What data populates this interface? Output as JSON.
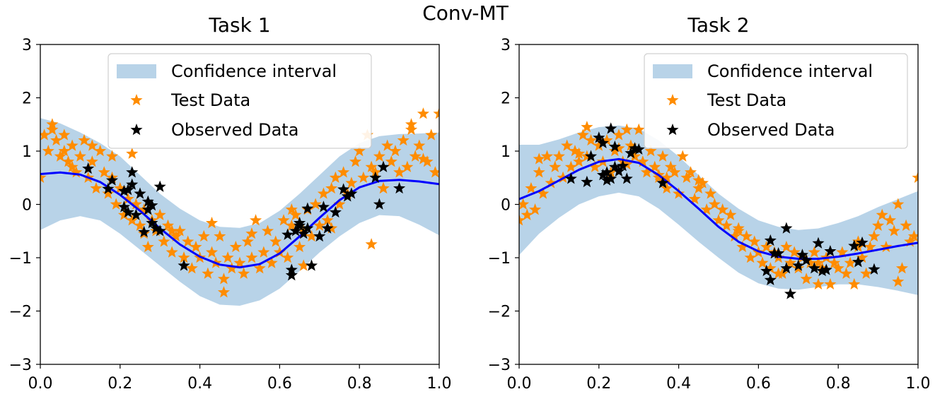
{
  "suptitle": "Conv-MT",
  "colors": {
    "band": "#b8d3e8",
    "mean": "#0000ff",
    "test": "#ff8c00",
    "observed": "#000000"
  },
  "legend": {
    "band_label": "Confidence interval",
    "test_label": "Test Data",
    "observed_label": "Observed Data"
  },
  "chart_data": [
    {
      "type": "scatter",
      "title": "Task 1",
      "xlim": [
        0.0,
        1.0
      ],
      "ylim": [
        -3,
        3
      ],
      "xticks": [
        "0.0",
        "0.2",
        "0.4",
        "0.6",
        "0.8",
        "1.0"
      ],
      "yticks": [
        "−3",
        "−2",
        "−1",
        "0",
        "1",
        "2",
        "3"
      ],
      "mean": {
        "x": [
          0.0,
          0.05,
          0.1,
          0.15,
          0.2,
          0.25,
          0.3,
          0.35,
          0.4,
          0.45,
          0.5,
          0.55,
          0.6,
          0.65,
          0.7,
          0.75,
          0.8,
          0.85,
          0.9,
          0.95,
          1.0
        ],
        "y": [
          0.57,
          0.6,
          0.56,
          0.42,
          0.18,
          -0.12,
          -0.45,
          -0.75,
          -0.98,
          -1.13,
          -1.18,
          -1.12,
          -0.92,
          -0.6,
          -0.25,
          0.08,
          0.32,
          0.44,
          0.46,
          0.43,
          0.38
        ]
      },
      "band": {
        "x": [
          0.0,
          0.05,
          0.1,
          0.15,
          0.2,
          0.25,
          0.3,
          0.35,
          0.4,
          0.45,
          0.5,
          0.55,
          0.6,
          0.65,
          0.7,
          0.75,
          0.8,
          0.85,
          0.9,
          0.95,
          1.0
        ],
        "upper": [
          1.62,
          1.52,
          1.35,
          1.15,
          0.9,
          0.55,
          0.2,
          -0.08,
          -0.3,
          -0.42,
          -0.44,
          -0.35,
          -0.12,
          0.2,
          0.55,
          0.9,
          1.15,
          1.28,
          1.32,
          1.33,
          1.35
        ],
        "lower": [
          -0.48,
          -0.3,
          -0.22,
          -0.3,
          -0.55,
          -0.85,
          -1.15,
          -1.45,
          -1.72,
          -1.88,
          -1.9,
          -1.8,
          -1.58,
          -1.25,
          -0.9,
          -0.6,
          -0.35,
          -0.2,
          -0.22,
          -0.38,
          -0.58
        ]
      },
      "test": {
        "x": [
          0.0,
          0.01,
          0.02,
          0.03,
          0.04,
          0.05,
          0.06,
          0.07,
          0.08,
          0.09,
          0.1,
          0.11,
          0.12,
          0.13,
          0.14,
          0.15,
          0.16,
          0.17,
          0.18,
          0.19,
          0.2,
          0.21,
          0.22,
          0.23,
          0.24,
          0.25,
          0.26,
          0.27,
          0.28,
          0.29,
          0.3,
          0.31,
          0.32,
          0.33,
          0.34,
          0.35,
          0.36,
          0.37,
          0.38,
          0.39,
          0.4,
          0.41,
          0.42,
          0.43,
          0.44,
          0.45,
          0.46,
          0.47,
          0.48,
          0.49,
          0.5,
          0.51,
          0.52,
          0.53,
          0.54,
          0.55,
          0.56,
          0.57,
          0.58,
          0.59,
          0.6,
          0.61,
          0.62,
          0.63,
          0.64,
          0.65,
          0.66,
          0.67,
          0.68,
          0.69,
          0.7,
          0.71,
          0.72,
          0.73,
          0.74,
          0.75,
          0.76,
          0.77,
          0.78,
          0.79,
          0.8,
          0.81,
          0.82,
          0.83,
          0.84,
          0.85,
          0.86,
          0.87,
          0.88,
          0.89,
          0.9,
          0.91,
          0.92,
          0.93,
          0.94,
          0.95,
          0.96,
          0.97,
          0.98,
          0.99,
          1.0,
          0.03,
          0.08,
          0.13,
          0.18,
          0.23,
          0.33,
          0.43,
          0.53,
          0.63,
          0.73,
          0.83,
          0.93,
          0.06,
          0.26,
          0.46,
          0.66,
          0.86,
          0.96
        ],
        "y": [
          0.5,
          1.3,
          1.0,
          1.5,
          1.2,
          0.9,
          1.3,
          0.8,
          1.1,
          0.6,
          0.9,
          1.2,
          0.5,
          0.8,
          0.3,
          1.0,
          0.6,
          0.2,
          0.5,
          0.0,
          0.3,
          -0.2,
          0.1,
          -0.3,
          0.0,
          -0.4,
          -0.1,
          -0.8,
          -0.3,
          -0.5,
          -0.2,
          -0.7,
          -0.4,
          -0.9,
          -0.6,
          -0.5,
          -1.0,
          -0.7,
          -1.2,
          -0.8,
          -1.0,
          -0.6,
          -1.3,
          -0.9,
          -1.1,
          -0.6,
          -1.4,
          -1.0,
          -1.2,
          -0.8,
          -1.1,
          -1.3,
          -0.7,
          -1.0,
          -0.3,
          -1.2,
          -0.9,
          -0.5,
          -1.1,
          -0.7,
          -0.9,
          -0.3,
          -1.0,
          -0.4,
          -0.2,
          -0.8,
          -0.5,
          -0.1,
          -0.6,
          0.0,
          -0.4,
          0.2,
          -0.3,
          0.3,
          0.5,
          0.0,
          0.6,
          0.2,
          0.4,
          0.8,
          1.0,
          0.5,
          1.3,
          0.7,
          0.6,
          0.9,
          0.3,
          1.1,
          0.8,
          1.0,
          0.6,
          1.2,
          0.7,
          1.5,
          0.9,
          1.1,
          1.7,
          0.8,
          1.3,
          0.6,
          1.7,
          1.4,
          0.7,
          1.1,
          0.9,
          0.95,
          -0.5,
          -0.35,
          -0.55,
          -0.1,
          -0.45,
          -0.75,
          1.4,
          1.0,
          -0.55,
          -1.65,
          -1.15,
          0.3,
          0.85
        ],
        "marker": "star"
      },
      "observed": {
        "x": [
          0.12,
          0.17,
          0.18,
          0.21,
          0.21,
          0.22,
          0.22,
          0.23,
          0.23,
          0.24,
          0.25,
          0.26,
          0.27,
          0.27,
          0.28,
          0.28,
          0.29,
          0.3,
          0.3,
          0.36,
          0.62,
          0.63,
          0.63,
          0.64,
          0.65,
          0.65,
          0.66,
          0.67,
          0.67,
          0.68,
          0.7,
          0.71,
          0.72,
          0.74,
          0.76,
          0.77,
          0.78,
          0.84,
          0.85,
          0.86,
          0.9
        ],
        "y": [
          0.67,
          0.29,
          0.45,
          0.25,
          -0.05,
          -0.15,
          0.27,
          0.6,
          0.37,
          -0.2,
          0.2,
          -0.52,
          -0.1,
          0.05,
          -0.35,
          -0.02,
          -0.45,
          0.33,
          -0.5,
          -1.15,
          -0.57,
          -1.33,
          -1.23,
          -0.5,
          -0.35,
          -0.4,
          -0.55,
          -0.08,
          -0.45,
          -1.15,
          -0.6,
          -0.05,
          -0.45,
          -0.15,
          0.28,
          0.15,
          0.2,
          0.5,
          0.0,
          0.7,
          0.3
        ],
        "marker": "star"
      }
    },
    {
      "type": "scatter",
      "title": "Task 2",
      "xlim": [
        0.0,
        1.0
      ],
      "ylim": [
        -3,
        3
      ],
      "xticks": [
        "0.0",
        "0.2",
        "0.4",
        "0.6",
        "0.8",
        "1.0"
      ],
      "yticks": [
        "−3",
        "−2",
        "−1",
        "0",
        "1",
        "2",
        "3"
      ],
      "mean": {
        "x": [
          0.0,
          0.05,
          0.1,
          0.15,
          0.2,
          0.25,
          0.3,
          0.35,
          0.4,
          0.45,
          0.5,
          0.55,
          0.6,
          0.65,
          0.7,
          0.75,
          0.8,
          0.85,
          0.9,
          0.95,
          1.0
        ],
        "y": [
          0.1,
          0.25,
          0.45,
          0.65,
          0.8,
          0.85,
          0.78,
          0.55,
          0.25,
          -0.08,
          -0.42,
          -0.7,
          -0.88,
          -0.98,
          -1.02,
          -1.02,
          -0.98,
          -0.92,
          -0.85,
          -0.78,
          -0.72
        ]
      },
      "band": {
        "x": [
          0.0,
          0.05,
          0.1,
          0.15,
          0.2,
          0.25,
          0.3,
          0.35,
          0.4,
          0.45,
          0.5,
          0.55,
          0.6,
          0.65,
          0.7,
          0.75,
          0.8,
          0.85,
          0.9,
          0.95,
          1.0
        ],
        "upper": [
          1.12,
          1.12,
          1.22,
          1.35,
          1.45,
          1.48,
          1.42,
          1.2,
          0.9,
          0.55,
          0.2,
          -0.08,
          -0.3,
          -0.42,
          -0.48,
          -0.45,
          -0.35,
          -0.22,
          -0.05,
          0.1,
          0.25
        ],
        "lower": [
          -0.95,
          -0.55,
          -0.25,
          0.0,
          0.15,
          0.22,
          0.15,
          -0.08,
          -0.38,
          -0.7,
          -1.0,
          -1.28,
          -1.48,
          -1.58,
          -1.6,
          -1.55,
          -1.5,
          -1.5,
          -1.55,
          -1.62,
          -1.7
        ]
      },
      "test": {
        "x": [
          0.0,
          0.01,
          0.02,
          0.03,
          0.04,
          0.05,
          0.06,
          0.07,
          0.08,
          0.09,
          0.1,
          0.11,
          0.12,
          0.13,
          0.14,
          0.15,
          0.16,
          0.17,
          0.18,
          0.19,
          0.2,
          0.21,
          0.22,
          0.23,
          0.24,
          0.25,
          0.26,
          0.27,
          0.28,
          0.29,
          0.3,
          0.31,
          0.32,
          0.33,
          0.34,
          0.35,
          0.36,
          0.37,
          0.38,
          0.39,
          0.4,
          0.41,
          0.42,
          0.43,
          0.44,
          0.45,
          0.46,
          0.47,
          0.48,
          0.49,
          0.5,
          0.51,
          0.52,
          0.53,
          0.54,
          0.55,
          0.56,
          0.57,
          0.58,
          0.59,
          0.6,
          0.61,
          0.62,
          0.63,
          0.64,
          0.65,
          0.66,
          0.67,
          0.68,
          0.69,
          0.7,
          0.71,
          0.72,
          0.73,
          0.74,
          0.75,
          0.76,
          0.77,
          0.78,
          0.79,
          0.8,
          0.81,
          0.82,
          0.83,
          0.84,
          0.85,
          0.86,
          0.87,
          0.88,
          0.89,
          0.9,
          0.91,
          0.92,
          0.93,
          0.94,
          0.95,
          0.96,
          0.97,
          0.98,
          0.99,
          1.0,
          0.05,
          0.15,
          0.25,
          0.35,
          0.45,
          0.55,
          0.65,
          0.75,
          0.85,
          0.95,
          0.17,
          0.27,
          0.37
        ],
        "y": [
          -0.3,
          0.0,
          -0.2,
          0.3,
          -0.1,
          0.6,
          0.2,
          0.9,
          0.4,
          0.7,
          0.9,
          0.5,
          1.1,
          0.7,
          1.0,
          0.8,
          1.3,
          0.9,
          1.2,
          0.7,
          1.1,
          0.8,
          1.2,
          0.6,
          1.0,
          1.3,
          0.8,
          1.4,
          1.1,
          0.9,
          1.4,
          0.8,
          0.6,
          1.0,
          0.7,
          0.5,
          0.9,
          0.3,
          0.7,
          0.6,
          0.2,
          0.9,
          0.5,
          0.6,
          0.1,
          0.3,
          0.4,
          -0.1,
          0.2,
          0.0,
          -0.3,
          -0.1,
          -0.4,
          -0.2,
          -0.6,
          -0.5,
          -0.8,
          -0.6,
          -1.0,
          -0.7,
          -0.9,
          -1.1,
          -0.8,
          -1.2,
          -0.9,
          -1.0,
          -1.3,
          -0.8,
          -1.1,
          -0.9,
          -1.2,
          -1.0,
          -1.4,
          -1.1,
          -0.9,
          -1.5,
          -1.2,
          -1.0,
          -1.5,
          -1.1,
          -1.2,
          -0.9,
          -1.3,
          -1.1,
          -1.5,
          -0.7,
          -1.0,
          -1.3,
          -0.8,
          -0.6,
          -0.4,
          -0.2,
          -0.8,
          -0.3,
          -0.5,
          0.0,
          -1.2,
          -0.4,
          -0.7,
          -0.6,
          0.5,
          0.85,
          0.95,
          1.05,
          0.55,
          0.45,
          -0.45,
          -1.3,
          -1.1,
          -0.8,
          -1.45,
          1.45,
          0.75,
          0.5
        ],
        "marker": "star"
      },
      "observed": {
        "x": [
          0.13,
          0.17,
          0.18,
          0.2,
          0.21,
          0.21,
          0.22,
          0.22,
          0.23,
          0.23,
          0.24,
          0.24,
          0.25,
          0.26,
          0.27,
          0.28,
          0.29,
          0.3,
          0.36,
          0.62,
          0.63,
          0.63,
          0.64,
          0.65,
          0.67,
          0.67,
          0.68,
          0.7,
          0.71,
          0.72,
          0.74,
          0.75,
          0.76,
          0.77,
          0.78,
          0.84,
          0.85,
          0.86,
          0.89
        ],
        "y": [
          0.48,
          0.42,
          0.9,
          1.25,
          0.55,
          1.15,
          0.45,
          0.6,
          1.42,
          0.48,
          0.7,
          1.08,
          0.62,
          0.72,
          0.48,
          0.96,
          1.05,
          1.03,
          0.4,
          -1.25,
          -1.42,
          -0.68,
          -0.92,
          -0.92,
          -1.2,
          -0.45,
          -1.68,
          -1.15,
          -0.95,
          -1.05,
          -1.2,
          -0.73,
          -1.25,
          -1.23,
          -0.88,
          -0.78,
          -1.08,
          -0.72,
          -1.22
        ],
        "marker": "star"
      }
    }
  ]
}
